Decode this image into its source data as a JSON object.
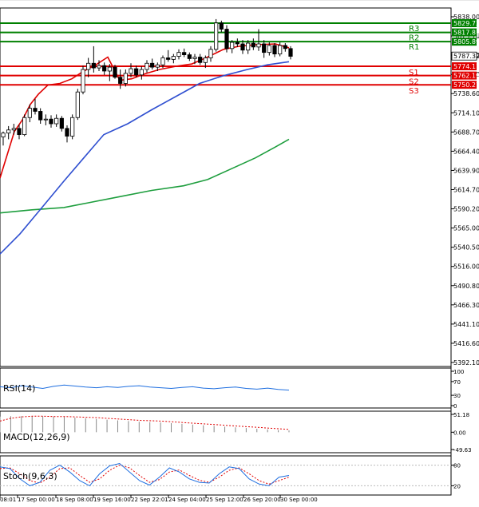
{
  "chart_data": {
    "type": "candlestick",
    "y_ticks": [
      "5838.00",
      "5813.70",
      "5787.40",
      "5762.70",
      "5738.60",
      "5714.10",
      "5688.70",
      "5664.40",
      "5639.90",
      "5614.70",
      "5590.20",
      "5565.00",
      "5540.50",
      "5516.00",
      "5490.80",
      "5466.30",
      "5441.10",
      "5416.60",
      "5392.10"
    ],
    "y_range": [
      5392.1,
      5838.0
    ],
    "x_ticks": [
      "08:01",
      "17 Sep 00:00",
      "18 Sep 08:00",
      "19 Sep 16:00",
      "22 Sep 22:01",
      "24 Sep 04:00",
      "25 Sep 12:00",
      "26 Sep 20:00",
      "30 Sep 00:00"
    ],
    "last_price": "5787.32",
    "price_color": "#000000",
    "levels": [
      {
        "name": "R3",
        "value": 5829.73,
        "label": "5829.73",
        "color": "#008000"
      },
      {
        "name": "R2",
        "value": 5817.81,
        "label": "5817.81",
        "color": "#008000"
      },
      {
        "name": "R1",
        "value": 5805.89,
        "label": "5805.89",
        "color": "#008000"
      },
      {
        "name": "S1",
        "value": 5774.11,
        "label": "5774.11",
        "color": "#e00000"
      },
      {
        "name": "S2",
        "value": 5762.19,
        "label": "5762.19",
        "color": "#e00000"
      },
      {
        "name": "S3",
        "value": 5750.27,
        "label": "5750.27",
        "color": "#e00000"
      }
    ],
    "candles": [
      [
        5683,
        5690,
        5672,
        5688
      ],
      [
        5688,
        5697,
        5680,
        5692
      ],
      [
        5692,
        5700,
        5686,
        5694
      ],
      [
        5694,
        5699,
        5680,
        5686
      ],
      [
        5686,
        5712,
        5684,
        5708
      ],
      [
        5708,
        5725,
        5702,
        5720
      ],
      [
        5720,
        5732,
        5712,
        5716
      ],
      [
        5716,
        5720,
        5700,
        5705
      ],
      [
        5705,
        5712,
        5698,
        5706
      ],
      [
        5706,
        5711,
        5695,
        5700
      ],
      [
        5700,
        5712,
        5696,
        5707
      ],
      [
        5707,
        5710,
        5690,
        5694
      ],
      [
        5694,
        5698,
        5676,
        5684
      ],
      [
        5684,
        5712,
        5680,
        5708
      ],
      [
        5708,
        5745,
        5705,
        5741
      ],
      [
        5741,
        5775,
        5738,
        5770
      ],
      [
        5770,
        5785,
        5760,
        5778
      ],
      [
        5778,
        5800,
        5766,
        5772
      ],
      [
        5772,
        5782,
        5768,
        5775
      ],
      [
        5775,
        5779,
        5763,
        5768
      ],
      [
        5768,
        5777,
        5755,
        5773
      ],
      [
        5773,
        5776,
        5758,
        5760
      ],
      [
        5760,
        5770,
        5745,
        5752
      ],
      [
        5752,
        5770,
        5748,
        5765
      ],
      [
        5765,
        5778,
        5760,
        5771
      ],
      [
        5771,
        5775,
        5760,
        5763
      ],
      [
        5763,
        5774,
        5757,
        5770
      ],
      [
        5770,
        5782,
        5766,
        5778
      ],
      [
        5778,
        5784,
        5770,
        5773
      ],
      [
        5773,
        5779,
        5768,
        5776
      ],
      [
        5776,
        5788,
        5772,
        5785
      ],
      [
        5785,
        5795,
        5780,
        5783
      ],
      [
        5783,
        5790,
        5778,
        5787
      ],
      [
        5787,
        5796,
        5783,
        5792
      ],
      [
        5792,
        5797,
        5786,
        5789
      ],
      [
        5789,
        5792,
        5781,
        5784
      ],
      [
        5784,
        5790,
        5777,
        5786
      ],
      [
        5786,
        5790,
        5776,
        5779
      ],
      [
        5779,
        5788,
        5772,
        5785
      ],
      [
        5785,
        5800,
        5780,
        5796
      ],
      [
        5796,
        5835,
        5793,
        5830
      ],
      [
        5830,
        5833,
        5818,
        5822
      ],
      [
        5822,
        5827,
        5792,
        5797
      ],
      [
        5797,
        5808,
        5791,
        5805
      ],
      [
        5805,
        5810,
        5799,
        5803
      ],
      [
        5803,
        5808,
        5790,
        5795
      ],
      [
        5795,
        5808,
        5790,
        5804
      ],
      [
        5804,
        5810,
        5795,
        5799
      ],
      [
        5799,
        5822,
        5794,
        5803
      ],
      [
        5803,
        5808,
        5785,
        5792
      ],
      [
        5792,
        5805,
        5788,
        5801
      ],
      [
        5801,
        5804,
        5786,
        5790
      ],
      [
        5790,
        5805,
        5787,
        5801
      ],
      [
        5801,
        5804,
        5793,
        5797
      ],
      [
        5797,
        5800,
        5783,
        5787
      ]
    ],
    "ma_fast": {
      "color": "#e00000",
      "points": [
        [
          0,
          5630
        ],
        [
          9,
          5660
        ],
        [
          18,
          5690
        ],
        [
          28,
          5705
        ],
        [
          38,
          5725
        ],
        [
          48,
          5738
        ],
        [
          60,
          5750
        ],
        [
          75,
          5752
        ],
        [
          90,
          5758
        ],
        [
          105,
          5768
        ],
        [
          120,
          5776
        ],
        [
          135,
          5786
        ],
        [
          150,
          5756
        ],
        [
          165,
          5758
        ],
        [
          180,
          5764
        ],
        [
          200,
          5770
        ],
        [
          220,
          5774
        ],
        [
          240,
          5777
        ],
        [
          260,
          5786
        ],
        [
          280,
          5796
        ],
        [
          300,
          5800
        ],
        [
          320,
          5802
        ],
        [
          345,
          5803
        ],
        [
          362,
          5798
        ]
      ]
    },
    "ma_mid": {
      "color": "#2f4fd0",
      "points": [
        [
          0,
          5532
        ],
        [
          25,
          5558
        ],
        [
          55,
          5595
        ],
        [
          80,
          5626
        ],
        [
          105,
          5656
        ],
        [
          130,
          5686
        ],
        [
          160,
          5700
        ],
        [
          190,
          5718
        ],
        [
          220,
          5735
        ],
        [
          250,
          5752
        ],
        [
          280,
          5762
        ],
        [
          310,
          5770
        ],
        [
          335,
          5776
        ],
        [
          362,
          5780
        ]
      ]
    },
    "ma_slow": {
      "color": "#1e9e3e",
      "points": [
        [
          0,
          5585
        ],
        [
          40,
          5589
        ],
        [
          80,
          5592
        ],
        [
          110,
          5598
        ],
        [
          150,
          5606
        ],
        [
          190,
          5614
        ],
        [
          230,
          5620
        ],
        [
          260,
          5628
        ],
        [
          290,
          5642
        ],
        [
          320,
          5656
        ],
        [
          345,
          5670
        ],
        [
          362,
          5680
        ]
      ]
    },
    "rsi": {
      "label": "RSI(14)",
      "ticks": [
        "100",
        "70",
        "30",
        "0"
      ],
      "color": "#1f6fe0",
      "values": [
        55,
        52,
        58,
        54,
        50,
        56,
        60,
        57,
        54,
        52,
        55,
        53,
        56,
        58,
        54,
        52,
        50,
        53,
        55,
        51,
        49,
        52,
        54,
        50,
        48,
        51,
        47,
        45
      ]
    },
    "macd": {
      "label": "MACD(12,26,9)",
      "ticks": [
        "51.18",
        "0.00",
        "-49.63"
      ],
      "bar_color": "#888888",
      "signal_color": "#e00000",
      "hist": [
        45,
        46,
        46,
        46,
        46,
        45,
        44,
        42,
        40,
        38,
        36,
        34,
        32,
        30,
        29,
        28,
        26,
        24,
        22,
        20,
        18,
        16,
        14,
        12,
        10,
        8,
        6,
        5
      ],
      "signal": [
        32,
        40,
        44,
        46,
        46,
        45,
        45,
        44,
        43,
        42,
        40,
        38,
        36,
        34,
        33,
        32,
        30,
        28,
        26,
        24,
        22,
        20,
        18,
        16,
        14,
        12,
        10,
        8
      ]
    },
    "stoch": {
      "label": "Stoch(9,6,3)",
      "ticks": [
        "80",
        "20"
      ],
      "k_color": "#1f6fe0",
      "d_color": "#e00000",
      "k": [
        75,
        70,
        40,
        20,
        30,
        65,
        80,
        60,
        35,
        20,
        55,
        78,
        85,
        60,
        35,
        22,
        45,
        72,
        60,
        40,
        30,
        28,
        55,
        75,
        70,
        40,
        25,
        20,
        45,
        50
      ],
      "d": [
        70,
        72,
        55,
        35,
        28,
        45,
        70,
        72,
        50,
        30,
        40,
        65,
        80,
        72,
        50,
        30,
        38,
        60,
        66,
        50,
        36,
        30,
        45,
        65,
        72,
        55,
        35,
        25,
        35,
        45
      ]
    }
  }
}
